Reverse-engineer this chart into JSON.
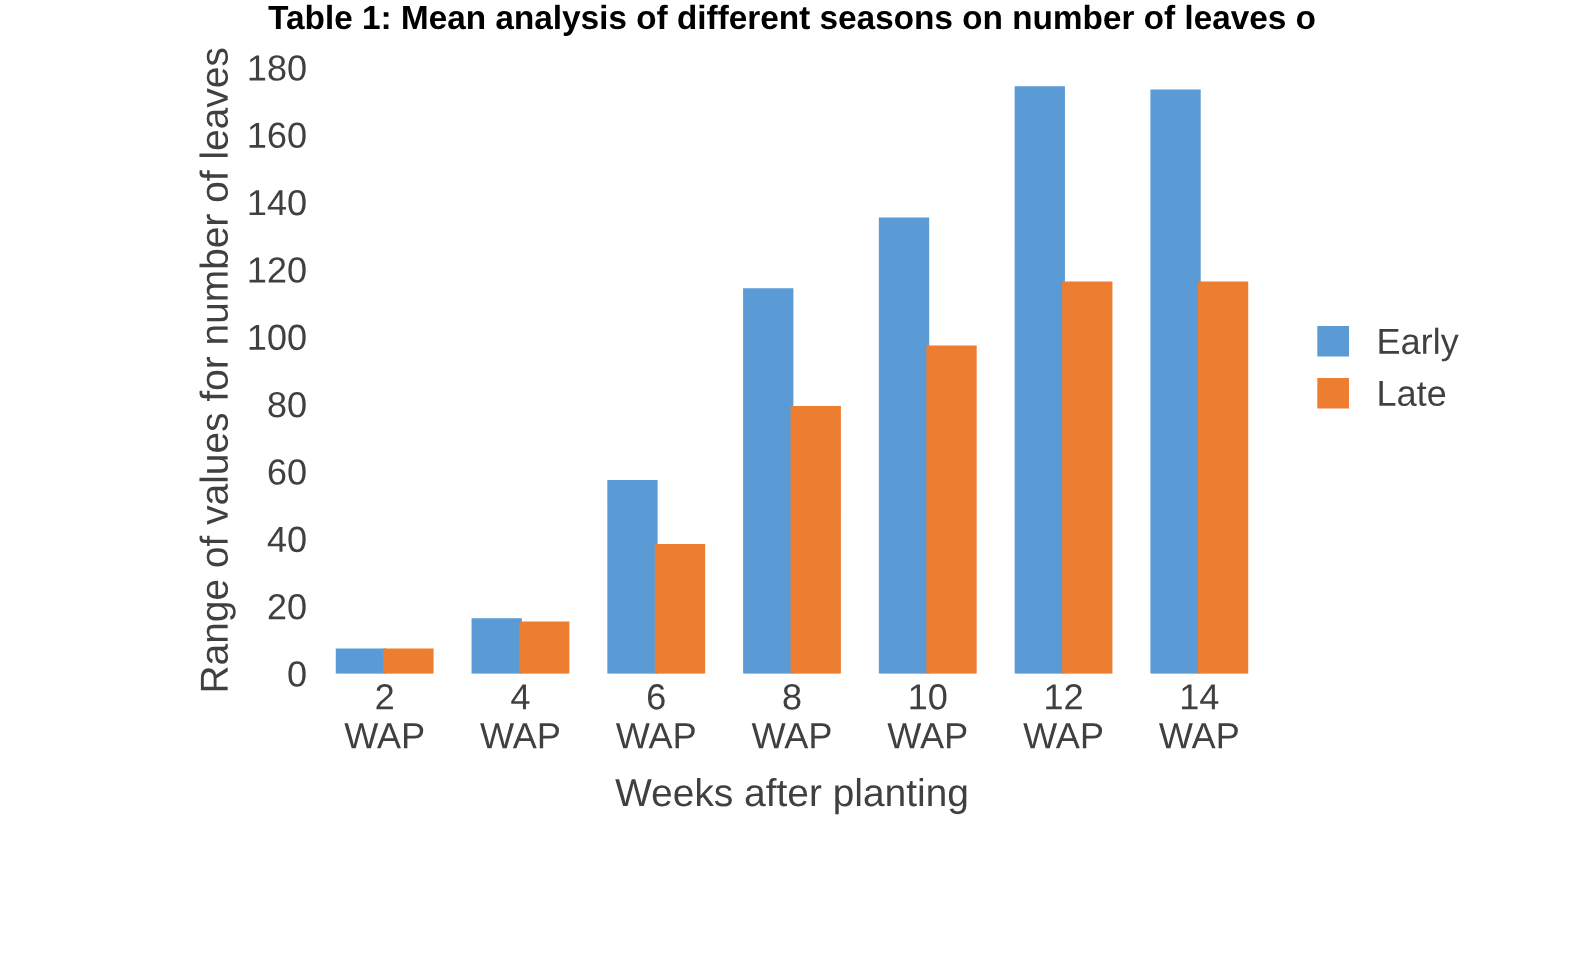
{
  "chart_data": {
    "type": "bar",
    "title": "Table 1: Mean analysis of different seasons on number of leaves o",
    "xlabel": "Weeks after planting",
    "ylabel": "Range of values for number of leaves",
    "categories": [
      "2\nWAP",
      "4\nWAP",
      "6\nWAP",
      "8\nWAP",
      "10\nWAP",
      "12\nWAP",
      "14\nWAP"
    ],
    "series": [
      {
        "name": "Early",
        "color": "#5b9bd5",
        "values": [
          7,
          16,
          57,
          114,
          135,
          174,
          173
        ]
      },
      {
        "name": "Late",
        "color": "#ed7d31",
        "values": [
          7,
          15,
          38,
          79,
          97,
          116,
          116
        ]
      }
    ],
    "ylim": [
      0,
      180
    ],
    "yticks": [
      0,
      20,
      40,
      60,
      80,
      100,
      120,
      140,
      160,
      180
    ],
    "grid": false,
    "legend": "right"
  }
}
